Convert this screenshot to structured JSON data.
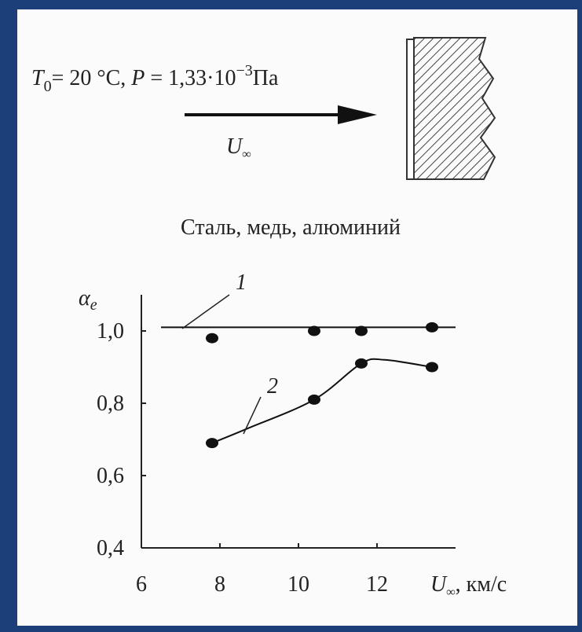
{
  "diagram": {
    "condition": [
      "T",
      "0",
      "= 20 °C, ",
      "P",
      " = 1,33·10",
      "−3",
      "Па"
    ],
    "flow_label": {
      "symbol": "U",
      "subscript": "∞"
    }
  },
  "chart_data": {
    "type": "scatter",
    "title": "Сталь, медь, алюминий",
    "ylabel": {
      "symbol": "α",
      "subscript": "e"
    },
    "xlabel": {
      "symbol": "U",
      "subscript": "∞",
      "unit": ", км/с"
    },
    "xlim": [
      6,
      14
    ],
    "xticks": [
      6,
      8,
      10,
      12
    ],
    "ylim": [
      0.4,
      1.1
    ],
    "yticks": [
      {
        "value": 0.4,
        "label": "0,4"
      },
      {
        "value": 0.6,
        "label": "0,6"
      },
      {
        "value": 0.8,
        "label": "0,8"
      },
      {
        "value": 1.0,
        "label": "1,0"
      }
    ],
    "series": [
      {
        "name": "1",
        "color": "#111111",
        "x": [
          7.8,
          10.4,
          11.6,
          13.4
        ],
        "values": [
          0.98,
          1.0,
          1.0,
          1.01
        ],
        "curve_x": [
          6.5,
          14
        ],
        "curve_values": [
          1.01,
          1.01
        ]
      },
      {
        "name": "2",
        "color": "#111111",
        "x": [
          7.8,
          10.4,
          11.6,
          13.4
        ],
        "values": [
          0.69,
          0.81,
          0.91,
          0.9
        ],
        "curve_x": [
          7.8,
          8.7,
          10.4,
          11.6,
          12.2,
          13.4
        ],
        "curve_values": [
          0.69,
          0.73,
          0.81,
          0.91,
          0.92,
          0.9
        ]
      }
    ]
  }
}
